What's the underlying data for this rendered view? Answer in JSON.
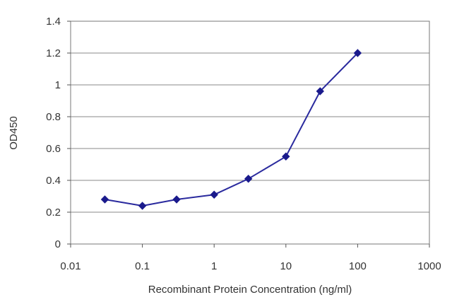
{
  "chart_data": {
    "type": "line",
    "xlabel": "Recombinant Protein Concentration (ng/ml)",
    "ylabel": "OD450",
    "x_scale": "log",
    "xlim": [
      0.01,
      1000
    ],
    "ylim": [
      0,
      1.4
    ],
    "x_ticks": [
      "0.01",
      "0.1",
      "1",
      "10",
      "100",
      "1000"
    ],
    "y_ticks": [
      "0",
      "0.2",
      "0.4",
      "0.6",
      "0.8",
      "1",
      "1.2",
      "1.4"
    ],
    "grid": "horizontal",
    "series": [
      {
        "x": [
          0.03,
          0.1,
          0.3,
          1,
          3,
          10,
          30,
          100
        ],
        "y": [
          0.28,
          0.24,
          0.28,
          0.31,
          0.41,
          0.55,
          0.96,
          1.2
        ]
      }
    ],
    "colors": {
      "line": "#2a2a9e",
      "marker": "#1a1a8c",
      "grid": "#888888",
      "axis": "#555555",
      "text": "#333333"
    }
  }
}
